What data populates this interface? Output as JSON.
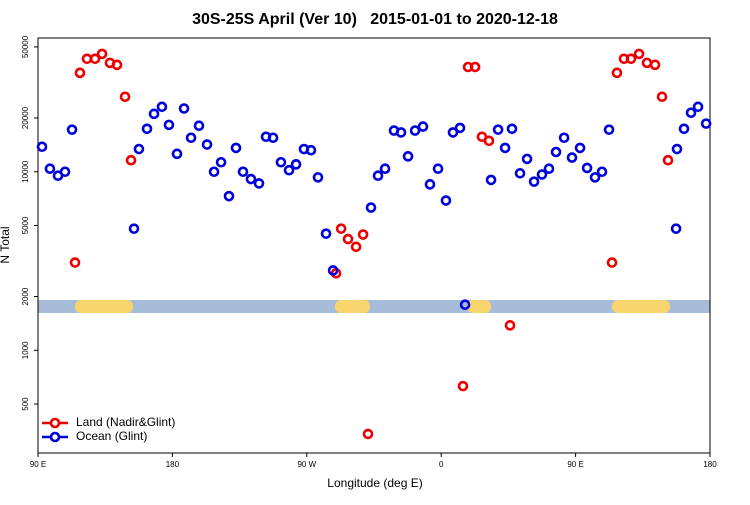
{
  "chart_data": {
    "type": "scatter",
    "title": "30S-25S April (Ver 10)   2015-01-01 to 2020-12-18",
    "x_label": "Longitude (deg E)",
    "y_label": "N Total",
    "xlim": [
      90,
      540
    ],
    "xticks": [
      {
        "value": 90,
        "label": "90 E"
      },
      180,
      {
        "value": 270,
        "label": "90 W"
      },
      {
        "value": 360,
        "label": "0"
      },
      {
        "value": 450,
        "label": "90 E"
      },
      {
        "value": 540,
        "label": "180"
      }
    ],
    "ylim": [
      266,
      56100
    ],
    "ylog": true,
    "yticks": [
      500,
      1000,
      2000,
      5000,
      10000,
      20000,
      50000
    ],
    "legend": "bottom-left",
    "series": [
      {
        "name": "Land (Nadir&Glint)",
        "color": "#ee0000",
        "x": [
          114.8,
          118.1,
          122.8,
          128.2,
          132.9,
          138.2,
          142.9,
          148.3,
          152.3,
          289.6,
          293.0,
          297.6,
          303.0,
          307.7,
          311.0,
          374.6,
          378.0,
          382.7,
          387.3,
          392.0,
          406.1,
          474.4,
          477.7,
          482.4,
          487.1,
          492.5,
          497.8,
          503.2,
          507.9,
          511.9
        ],
        "values": [
          3100,
          35800,
          42900,
          42900,
          45700,
          40700,
          39700,
          26300,
          11600,
          2700,
          4800,
          4200,
          3800,
          4450,
          340,
          630,
          38600,
          38600,
          15700,
          14900,
          1380,
          3100,
          35800,
          42900,
          42900,
          45700,
          40700,
          39700,
          26300,
          11600
        ]
      },
      {
        "name": "Ocean (Glint)",
        "color": "#0000dd",
        "x": [
          92.7,
          98.0,
          103.4,
          108.1,
          112.8,
          154.3,
          157.6,
          163.0,
          167.7,
          173.0,
          177.7,
          183.1,
          187.8,
          192.5,
          197.8,
          203.2,
          207.9,
          212.6,
          217.9,
          222.6,
          227.3,
          232.6,
          238.0,
          242.7,
          247.4,
          252.7,
          258.1,
          262.8,
          268.1,
          272.8,
          277.5,
          282.9,
          287.6,
          313.0,
          317.7,
          322.4,
          328.4,
          333.1,
          337.8,
          342.5,
          347.8,
          352.5,
          357.9,
          363.2,
          367.9,
          372.6,
          376.0,
          393.4,
          398.1,
          402.8,
          407.4,
          412.8,
          417.5,
          422.2,
          427.5,
          432.2,
          436.9,
          442.3,
          447.6,
          453.0,
          457.7,
          463.0,
          467.7,
          472.4,
          517.3,
          517.9,
          522.6,
          527.3,
          532.0,
          537.4
        ],
        "values": [
          13800,
          10400,
          9500,
          10000,
          17200,
          4800,
          13400,
          17400,
          21100,
          23100,
          18300,
          12600,
          22600,
          15500,
          18100,
          14200,
          10000,
          11300,
          7300,
          13600,
          10000,
          9100,
          8600,
          15700,
          15500,
          11300,
          10200,
          11000,
          13400,
          13200,
          9300,
          4500,
          2800,
          6300,
          9500,
          10400,
          17000,
          16600,
          12200,
          17000,
          17900,
          8500,
          10400,
          6900,
          16600,
          17600,
          1800,
          9000,
          17200,
          13600,
          17400,
          9800,
          11800,
          8800,
          9650,
          10400,
          12900,
          15500,
          12000,
          13600,
          10500,
          9300,
          10000,
          17200,
          4800,
          13400,
          17400,
          21400,
          23100,
          18600
        ]
      }
    ]
  }
}
